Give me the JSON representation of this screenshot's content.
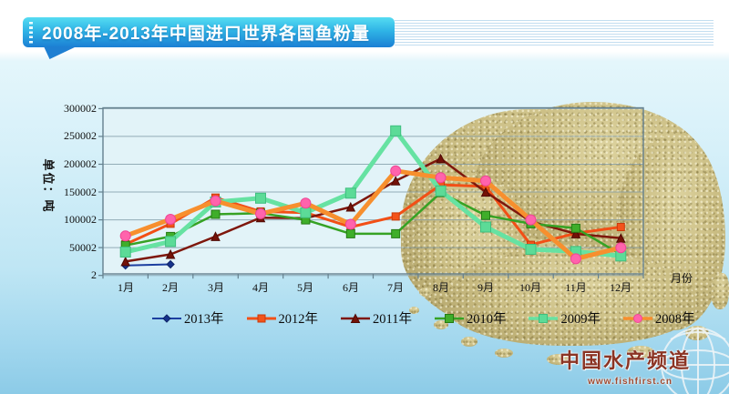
{
  "banner": {
    "title": "2008年-2013年中国进口世界各国鱼粉量"
  },
  "watermark": {
    "name": "中国水产频道",
    "url_text": "www.fishfirst.cn"
  },
  "chart_data": {
    "type": "line",
    "title": "2008年-2013年中国进口世界各国鱼粉量",
    "unit_label": "单位：吨",
    "x_axis_label": "月份",
    "categories": [
      "1月",
      "2月",
      "3月",
      "4月",
      "5月",
      "6月",
      "7月",
      "8月",
      "9月",
      "10月",
      "11月",
      "12月"
    ],
    "y_ticks": {
      "labels": [
        "300002",
        "250002",
        "200002",
        "150002",
        "100002",
        "50002",
        "2"
      ],
      "values": [
        300002,
        250002,
        200002,
        150002,
        100002,
        50002,
        2
      ]
    },
    "ylim": [
      2,
      300002
    ],
    "grid": true,
    "legend_position": "bottom",
    "series": [
      {
        "name": "2013年",
        "marker": "diamond",
        "line_color": "#1c3fa0",
        "marker_color": "#16338c",
        "marker_stroke": "#0e2468",
        "line_width": 2,
        "marker_size": 8,
        "values": [
          18000,
          20000,
          null,
          null,
          null,
          null,
          null,
          null,
          null,
          null,
          null,
          null
        ]
      },
      {
        "name": "2012年",
        "marker": "square",
        "line_color": "#f24f16",
        "marker_color": "#f3531a",
        "marker_stroke": "#c93a0b",
        "line_width": 3,
        "marker_size": 8,
        "values": [
          56000,
          93000,
          140000,
          115000,
          113000,
          87000,
          106000,
          163000,
          160000,
          55000,
          76000,
          87000
        ]
      },
      {
        "name": "2011年",
        "marker": "triangle",
        "line_color": "#7e170c",
        "marker_color": "#741208",
        "marker_stroke": "#4e0a04",
        "line_width": 2.5,
        "marker_size": 9,
        "values": [
          25000,
          38000,
          70000,
          104000,
          103000,
          123000,
          170000,
          210000,
          150000,
          97000,
          75000,
          67000
        ]
      },
      {
        "name": "2010年",
        "marker": "square",
        "line_color": "#36a224",
        "marker_color": "#3fae2a",
        "marker_stroke": "#257a14",
        "line_width": 2.5,
        "marker_size": 9,
        "values": [
          54000,
          70000,
          110000,
          112000,
          100000,
          75000,
          75000,
          149000,
          108000,
          93000,
          85000,
          38000
        ]
      },
      {
        "name": "2009年",
        "marker": "square",
        "line_color": "#66e2a2",
        "marker_color": "#5cdb97",
        "marker_stroke": "#3fbf7f",
        "line_width": 5,
        "marker_size": 11,
        "values": [
          42000,
          61000,
          132000,
          139000,
          113000,
          148000,
          260000,
          152000,
          87000,
          47000,
          43000,
          35000
        ]
      },
      {
        "name": "2008年",
        "marker": "circle",
        "line_color": "#f78f2e",
        "marker_color": "#ff63ac",
        "marker_stroke": "#ee4695",
        "line_width": 5,
        "marker_size": 11,
        "values": [
          71000,
          101000,
          134000,
          111000,
          130000,
          92000,
          188000,
          176000,
          170000,
          100000,
          30000,
          50000
        ]
      }
    ]
  }
}
